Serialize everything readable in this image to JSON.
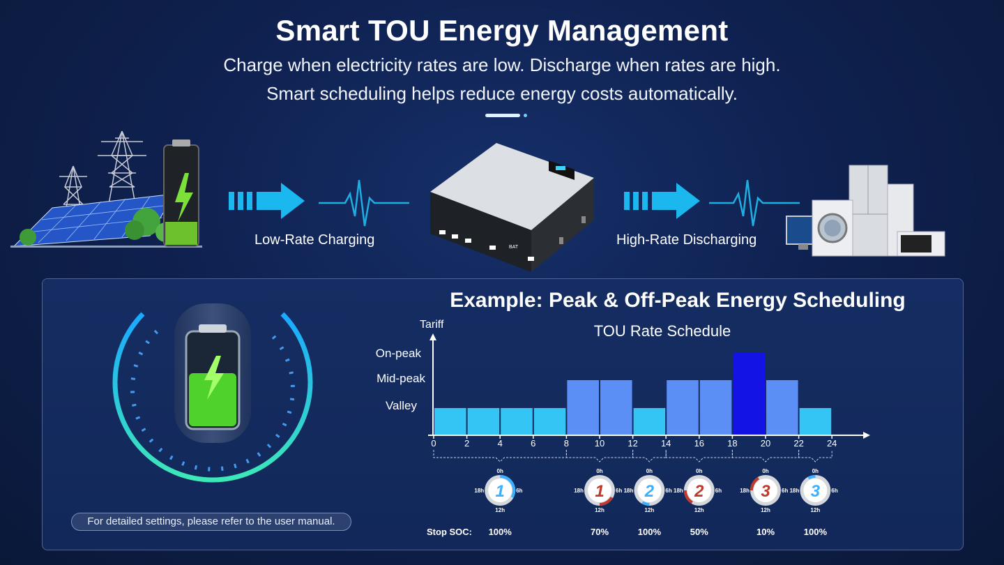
{
  "header": {
    "title": "Smart TOU Energy Management",
    "subtitle_line1": "Charge when electricity rates are low. Discharge when rates are high.",
    "subtitle_line2": "Smart scheduling helps reduce energy costs automatically."
  },
  "flow": {
    "charge_label": "Low-Rate Charging",
    "discharge_label": "High-Rate Discharging",
    "inverter_bat_label": "BAT"
  },
  "example": {
    "title": "Example: Peak & Off-Peak Energy Scheduling",
    "note": "For detailed settings, please refer to the user manual."
  },
  "colors": {
    "valley": "#35c5f4",
    "mid_peak": "#5b8ff5",
    "on_peak": "#1313e6",
    "charge_ring": "#3ab0ff",
    "discharge_ring": "#c0392b"
  },
  "chart_data": {
    "type": "bar",
    "title": "TOU Rate Schedule",
    "ylabel": "Tariff",
    "levels": [
      "Valley",
      "Mid-peak",
      "On-peak"
    ],
    "x_ticks": [
      0,
      2,
      4,
      6,
      8,
      10,
      12,
      14,
      16,
      18,
      20,
      22,
      24
    ],
    "bins": [
      {
        "start": 0,
        "end": 2,
        "level": "Valley"
      },
      {
        "start": 2,
        "end": 4,
        "level": "Valley"
      },
      {
        "start": 4,
        "end": 6,
        "level": "Valley"
      },
      {
        "start": 6,
        "end": 8,
        "level": "Valley"
      },
      {
        "start": 8,
        "end": 10,
        "level": "Mid-peak"
      },
      {
        "start": 10,
        "end": 12,
        "level": "Mid-peak"
      },
      {
        "start": 12,
        "end": 14,
        "level": "Valley"
      },
      {
        "start": 14,
        "end": 16,
        "level": "Mid-peak"
      },
      {
        "start": 16,
        "end": 18,
        "level": "Mid-peak"
      },
      {
        "start": 18,
        "end": 20,
        "level": "On-peak"
      },
      {
        "start": 20,
        "end": 22,
        "level": "Mid-peak"
      },
      {
        "start": 22,
        "end": 24,
        "level": "Valley"
      }
    ],
    "clock_labels": {
      "top": "0h",
      "left": "18h",
      "right": "6h",
      "bottom": "12h"
    },
    "stop_soc_label": "Stop SOC:",
    "periods": [
      {
        "number": "1",
        "mode": "charge",
        "start": 0,
        "end": 8,
        "stop_soc": "100%"
      },
      {
        "number": "1",
        "mode": "discharge",
        "start": 8,
        "end": 12,
        "stop_soc": "70%"
      },
      {
        "number": "2",
        "mode": "charge",
        "start": 12,
        "end": 14,
        "stop_soc": "100%"
      },
      {
        "number": "2",
        "mode": "discharge",
        "start": 14,
        "end": 18,
        "stop_soc": "50%"
      },
      {
        "number": "3",
        "mode": "discharge",
        "start": 18,
        "end": 22,
        "stop_soc": "10%"
      },
      {
        "number": "3",
        "mode": "charge",
        "start": 22,
        "end": 24,
        "stop_soc": "100%"
      }
    ]
  }
}
